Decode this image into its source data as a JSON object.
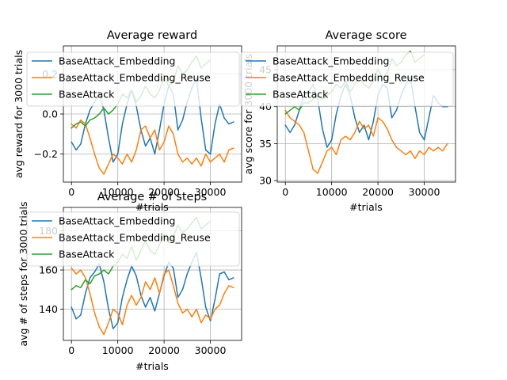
{
  "figure": {
    "background": "#ffffff"
  },
  "chart_data": [
    {
      "type": "line",
      "title": "Average reward",
      "xlabel": "#trials",
      "ylabel": "avg reward for 3000 trials",
      "xlim": [
        -1750,
        36750
      ],
      "ylim": [
        -0.34,
        0.34
      ],
      "xticks": [
        0,
        10000,
        20000,
        30000
      ],
      "yticks": [
        -0.2,
        0.0,
        0.2
      ],
      "ytick_labels": [
        "−0.2",
        "0.0",
        "0.2"
      ],
      "grid": true,
      "legend": "upper-left",
      "series": [
        {
          "name": "BaseAttack_Embedding",
          "color": "#1f77b4",
          "x": [
            0,
            1000,
            2000,
            3000,
            4000,
            5000,
            6000,
            7000,
            8000,
            9000,
            10000,
            11000,
            12000,
            13000,
            14000,
            15000,
            16000,
            17000,
            18000,
            19000,
            20000,
            21000,
            22000,
            23000,
            24000,
            25000,
            26000,
            27000,
            28000,
            29000,
            30000,
            31000,
            32000,
            33000,
            34000,
            35000
          ],
          "y": [
            -0.14,
            -0.18,
            -0.15,
            -0.05,
            0.02,
            0.06,
            0.1,
            0.02,
            -0.12,
            -0.24,
            -0.2,
            -0.05,
            0.05,
            0.12,
            0.04,
            -0.08,
            -0.16,
            -0.12,
            -0.2,
            -0.08,
            0.05,
            0.14,
            0.1,
            -0.08,
            -0.03,
            0.06,
            0.13,
            0.18,
            -0.02,
            -0.18,
            -0.2,
            -0.05,
            0.05,
            -0.02,
            -0.05,
            -0.04
          ]
        },
        {
          "name": "BaseAttack_Embedding_Reuse",
          "color": "#ff7f0e",
          "x": [
            0,
            1000,
            2000,
            3000,
            4000,
            5000,
            6000,
            7000,
            8000,
            9000,
            10000,
            11000,
            12000,
            13000,
            14000,
            15000,
            16000,
            17000,
            18000,
            19000,
            20000,
            21000,
            22000,
            23000,
            24000,
            25000,
            26000,
            27000,
            28000,
            29000,
            30000,
            31000,
            32000,
            33000,
            34000,
            35000
          ],
          "y": [
            -0.05,
            -0.07,
            -0.03,
            -0.05,
            -0.12,
            -0.2,
            -0.27,
            -0.3,
            -0.25,
            -0.2,
            -0.22,
            -0.25,
            -0.2,
            -0.24,
            -0.18,
            -0.08,
            -0.06,
            -0.12,
            -0.08,
            -0.18,
            -0.14,
            -0.06,
            -0.1,
            -0.2,
            -0.24,
            -0.22,
            -0.25,
            -0.22,
            -0.26,
            -0.2,
            -0.24,
            -0.22,
            -0.2,
            -0.24,
            -0.18,
            -0.17
          ]
        },
        {
          "name": "BaseAttack",
          "color": "#2ca02c",
          "x": [
            0,
            1000,
            2000,
            3000,
            4000,
            5000,
            6000,
            7000,
            8000,
            9000,
            10000,
            11000,
            12000,
            13000,
            14000,
            15000,
            16000,
            17000,
            18000,
            19000,
            20000,
            21000,
            22000,
            23000,
            24000,
            25000,
            26000,
            27000,
            28000,
            29000,
            30000
          ],
          "y": [
            -0.07,
            -0.05,
            -0.04,
            -0.06,
            -0.03,
            -0.02,
            0.0,
            0.03,
            0.0,
            0.02,
            0.05,
            0.1,
            0.08,
            0.12,
            0.06,
            0.09,
            0.14,
            0.1,
            0.08,
            0.12,
            0.18,
            0.14,
            0.16,
            0.24,
            0.2,
            0.22,
            0.26,
            0.29,
            0.23,
            0.25,
            0.27
          ]
        }
      ]
    },
    {
      "type": "line",
      "title": "Average score",
      "xlabel": "#trials",
      "ylabel": "avg score for 3000 trials",
      "xlim": [
        -1750,
        36750
      ],
      "ylim": [
        29.8,
        48.2
      ],
      "xticks": [
        0,
        10000,
        20000,
        30000
      ],
      "yticks": [
        30,
        35,
        40,
        45
      ],
      "ytick_labels": [
        "30",
        "35",
        "40",
        "45"
      ],
      "grid": true,
      "legend": "upper-left",
      "series": [
        {
          "name": "BaseAttack_Embedding",
          "color": "#1f77b4",
          "x": [
            0,
            1000,
            2000,
            3000,
            4000,
            5000,
            6000,
            7000,
            8000,
            9000,
            10000,
            11000,
            12000,
            13000,
            14000,
            15000,
            16000,
            17000,
            18000,
            19000,
            20000,
            21000,
            22000,
            23000,
            24000,
            25000,
            26000,
            27000,
            28000,
            29000,
            30000,
            31000,
            32000,
            33000,
            34000,
            35000
          ],
          "y": [
            37.5,
            36.5,
            37.5,
            39.5,
            41.5,
            42.0,
            43.0,
            41.0,
            37.0,
            34.5,
            35.5,
            39.0,
            41.5,
            43.0,
            41.5,
            38.5,
            36.5,
            37.5,
            35.5,
            38.0,
            41.5,
            43.0,
            42.5,
            38.5,
            39.5,
            41.5,
            43.0,
            44.0,
            40.0,
            36.5,
            35.5,
            38.5,
            41.5,
            40.5,
            40.0,
            40.0
          ]
        },
        {
          "name": "BaseAttack_Embedding_Reuse",
          "color": "#ff7f0e",
          "x": [
            0,
            1000,
            2000,
            3000,
            4000,
            5000,
            6000,
            7000,
            8000,
            9000,
            10000,
            11000,
            12000,
            13000,
            14000,
            15000,
            16000,
            17000,
            18000,
            19000,
            20000,
            21000,
            22000,
            23000,
            24000,
            25000,
            26000,
            27000,
            28000,
            29000,
            30000,
            31000,
            32000,
            33000,
            34000,
            35000
          ],
          "y": [
            39.5,
            38.5,
            38.0,
            37.5,
            36.5,
            34.0,
            31.5,
            31.0,
            32.5,
            34.0,
            34.5,
            33.5,
            35.5,
            36.0,
            35.5,
            36.5,
            38.0,
            37.0,
            37.5,
            36.0,
            38.5,
            38.0,
            37.0,
            35.5,
            34.5,
            34.0,
            33.5,
            34.0,
            33.0,
            34.0,
            33.5,
            34.5,
            34.0,
            34.5,
            34.0,
            35.0
          ]
        },
        {
          "name": "BaseAttack",
          "color": "#2ca02c",
          "x": [
            0,
            1000,
            2000,
            3000,
            4000,
            5000,
            6000,
            7000,
            8000,
            9000,
            10000,
            11000,
            12000,
            13000,
            14000,
            15000,
            16000,
            17000,
            18000,
            19000,
            20000,
            21000,
            22000,
            23000,
            24000,
            25000,
            26000,
            27000,
            28000,
            29000,
            30000
          ],
          "y": [
            39.0,
            39.5,
            40.0,
            39.5,
            40.5,
            40.5,
            41.0,
            41.5,
            41.0,
            41.5,
            42.0,
            43.0,
            42.5,
            43.5,
            42.0,
            43.0,
            44.0,
            43.0,
            42.5,
            43.5,
            45.0,
            44.0,
            44.5,
            46.5,
            45.5,
            46.0,
            47.0,
            47.5,
            46.0,
            46.5,
            47.0
          ]
        }
      ]
    },
    {
      "type": "line",
      "title": "Average # of steps",
      "xlabel": "#trials",
      "ylabel": "avg # of steps for 3000 trials",
      "xlim": [
        -1750,
        36750
      ],
      "ylim": [
        124,
        192
      ],
      "xticks": [
        0,
        10000,
        20000,
        30000
      ],
      "yticks": [
        140,
        160,
        180
      ],
      "ytick_labels": [
        "140",
        "160",
        "180"
      ],
      "grid": true,
      "legend": "upper-left",
      "series": [
        {
          "name": "BaseAttack_Embedding",
          "color": "#1f77b4",
          "x": [
            0,
            1000,
            2000,
            3000,
            4000,
            5000,
            6000,
            7000,
            8000,
            9000,
            10000,
            11000,
            12000,
            13000,
            14000,
            15000,
            16000,
            17000,
            18000,
            19000,
            20000,
            21000,
            22000,
            23000,
            24000,
            25000,
            26000,
            27000,
            28000,
            29000,
            30000,
            31000,
            32000,
            33000,
            34000,
            35000
          ],
          "y": [
            141,
            135,
            137,
            148,
            156,
            159,
            163,
            154,
            140,
            130,
            133,
            146,
            155,
            162,
            157,
            147,
            141,
            146,
            139,
            148,
            157,
            164,
            161,
            146,
            150,
            158,
            164,
            169,
            156,
            141,
            134,
            145,
            158,
            159,
            155,
            156
          ]
        },
        {
          "name": "BaseAttack_Embedding_Reuse",
          "color": "#ff7f0e",
          "x": [
            0,
            1000,
            2000,
            3000,
            4000,
            5000,
            6000,
            7000,
            8000,
            9000,
            10000,
            11000,
            12000,
            13000,
            14000,
            15000,
            16000,
            17000,
            18000,
            19000,
            20000,
            21000,
            22000,
            23000,
            24000,
            25000,
            26000,
            27000,
            28000,
            29000,
            30000,
            31000,
            32000,
            33000,
            34000,
            35000
          ],
          "y": [
            161,
            158,
            160,
            156,
            148,
            138,
            131,
            127,
            133,
            140,
            138,
            132,
            142,
            147,
            142,
            146,
            154,
            150,
            156,
            148,
            158,
            160,
            152,
            143,
            138,
            140,
            136,
            140,
            133,
            137,
            135,
            140,
            142,
            148,
            152,
            151
          ]
        },
        {
          "name": "BaseAttack",
          "color": "#2ca02c",
          "x": [
            0,
            1000,
            2000,
            3000,
            4000,
            5000,
            6000,
            7000,
            8000,
            9000,
            10000,
            11000,
            12000,
            13000,
            14000,
            15000,
            16000,
            17000,
            18000,
            19000,
            20000,
            21000,
            22000,
            23000,
            24000,
            25000,
            26000,
            27000,
            28000,
            29000,
            30000
          ],
          "y": [
            150,
            152,
            151,
            155,
            153,
            157,
            158,
            160,
            158,
            162,
            164,
            168,
            166,
            172,
            165,
            170,
            175,
            170,
            168,
            173,
            178,
            174,
            177,
            183,
            179,
            181,
            184,
            187,
            181,
            183,
            185
          ]
        }
      ]
    }
  ]
}
